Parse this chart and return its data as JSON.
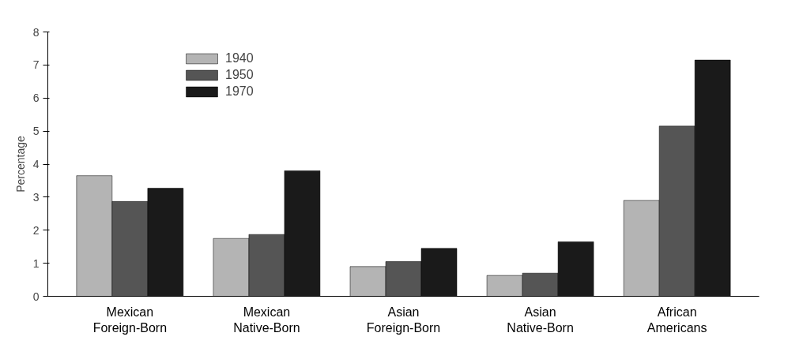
{
  "chart_data": {
    "type": "bar",
    "ylabel": "Percentage",
    "categories": [
      "Mexican\nForeign-Born",
      "Mexican\nNative-Born",
      "Asian\nForeign-Born",
      "Asian\nNative-Born",
      "African\nAmericans"
    ],
    "series": [
      {
        "name": "1940",
        "color": "#b4b4b4",
        "values": [
          3.65,
          1.75,
          0.9,
          0.63,
          2.9
        ]
      },
      {
        "name": "1950",
        "color": "#555555",
        "values": [
          2.87,
          1.87,
          1.05,
          0.7,
          5.15
        ]
      },
      {
        "name": "1970",
        "color": "#1a1a1a",
        "values": [
          3.27,
          3.8,
          1.45,
          1.65,
          7.15
        ]
      }
    ],
    "ylim": [
      0,
      8
    ],
    "yticks": [
      0,
      1,
      2,
      3,
      4,
      5,
      6,
      7,
      8
    ],
    "grid": false,
    "legend": "top left"
  }
}
